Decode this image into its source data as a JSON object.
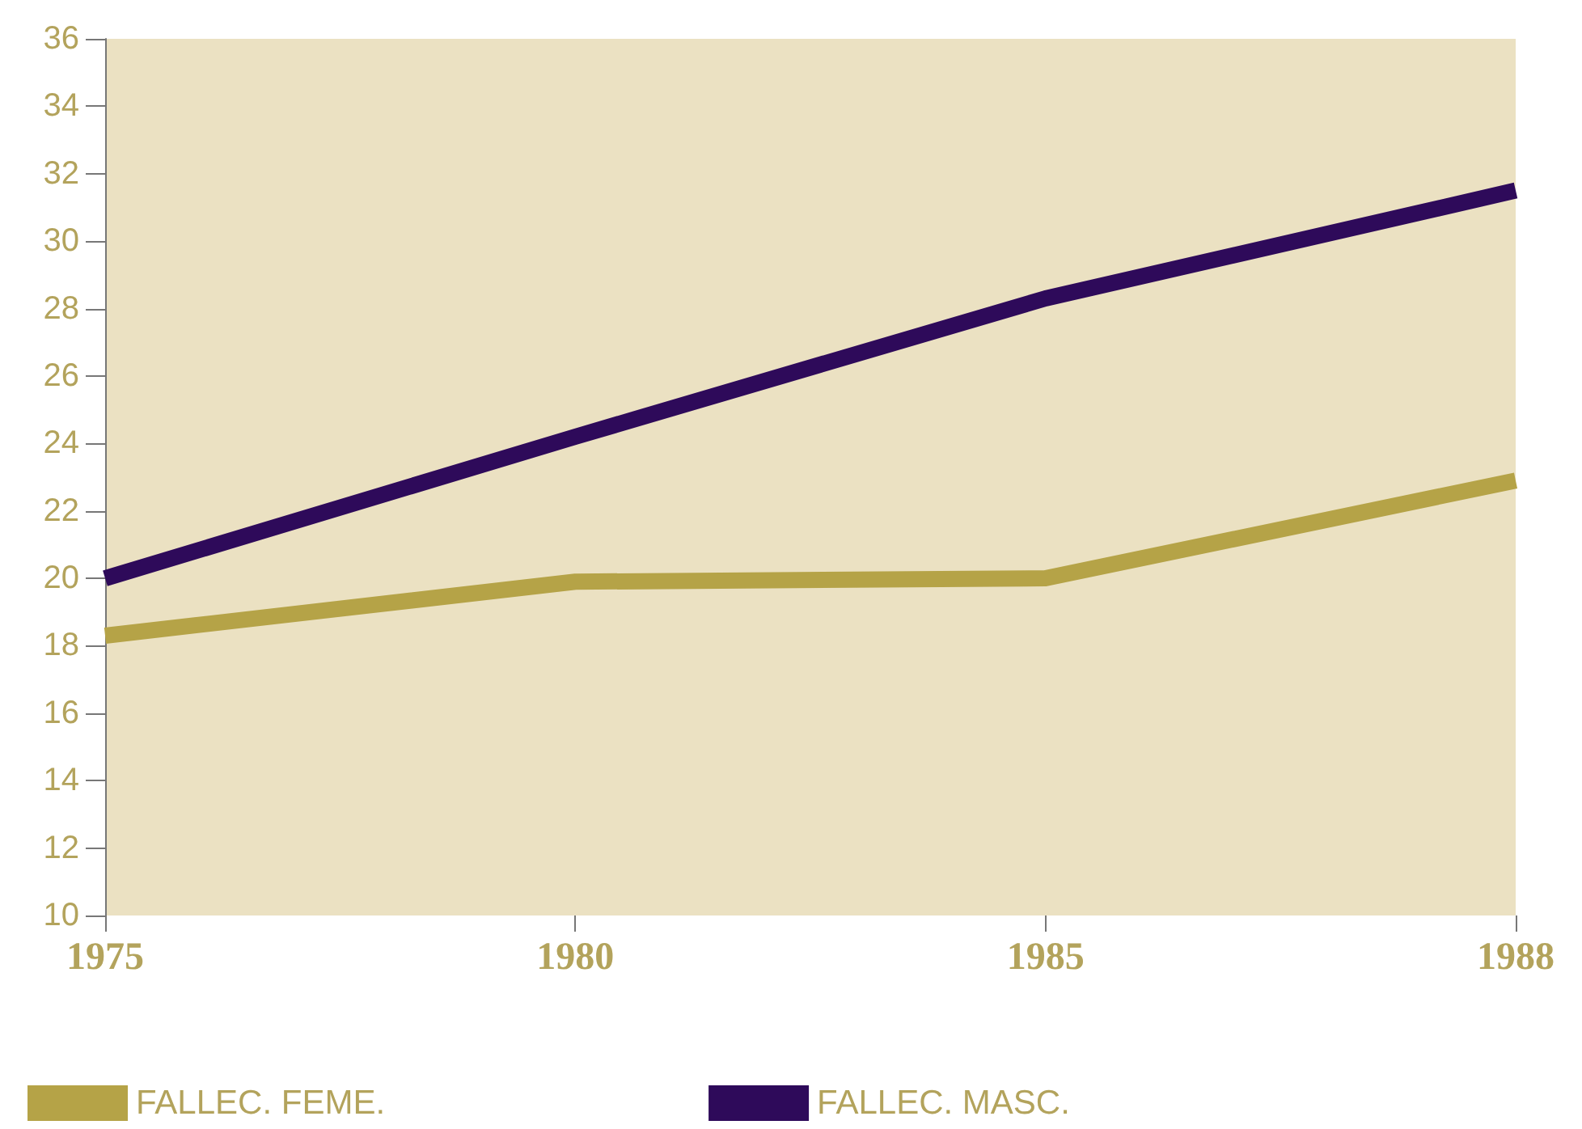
{
  "chart_data": {
    "type": "line",
    "categories": [
      "1975",
      "1980",
      "1985",
      "1988"
    ],
    "series": [
      {
        "name": "FALLEC. FEME.",
        "color": "#b5a347",
        "values": [
          18.3,
          19.9,
          20.0,
          22.9
        ]
      },
      {
        "name": "FALLEC. MASC.",
        "color": "#2e0a5a",
        "values": [
          20.0,
          24.2,
          28.3,
          31.5
        ]
      }
    ],
    "ylim": [
      10,
      36
    ],
    "yticks": [
      10,
      12,
      14,
      16,
      18,
      20,
      22,
      24,
      26,
      28,
      30,
      32,
      34,
      36
    ],
    "grid": false,
    "legend": "bottom left",
    "marker": "none",
    "line_style": "solid"
  }
}
